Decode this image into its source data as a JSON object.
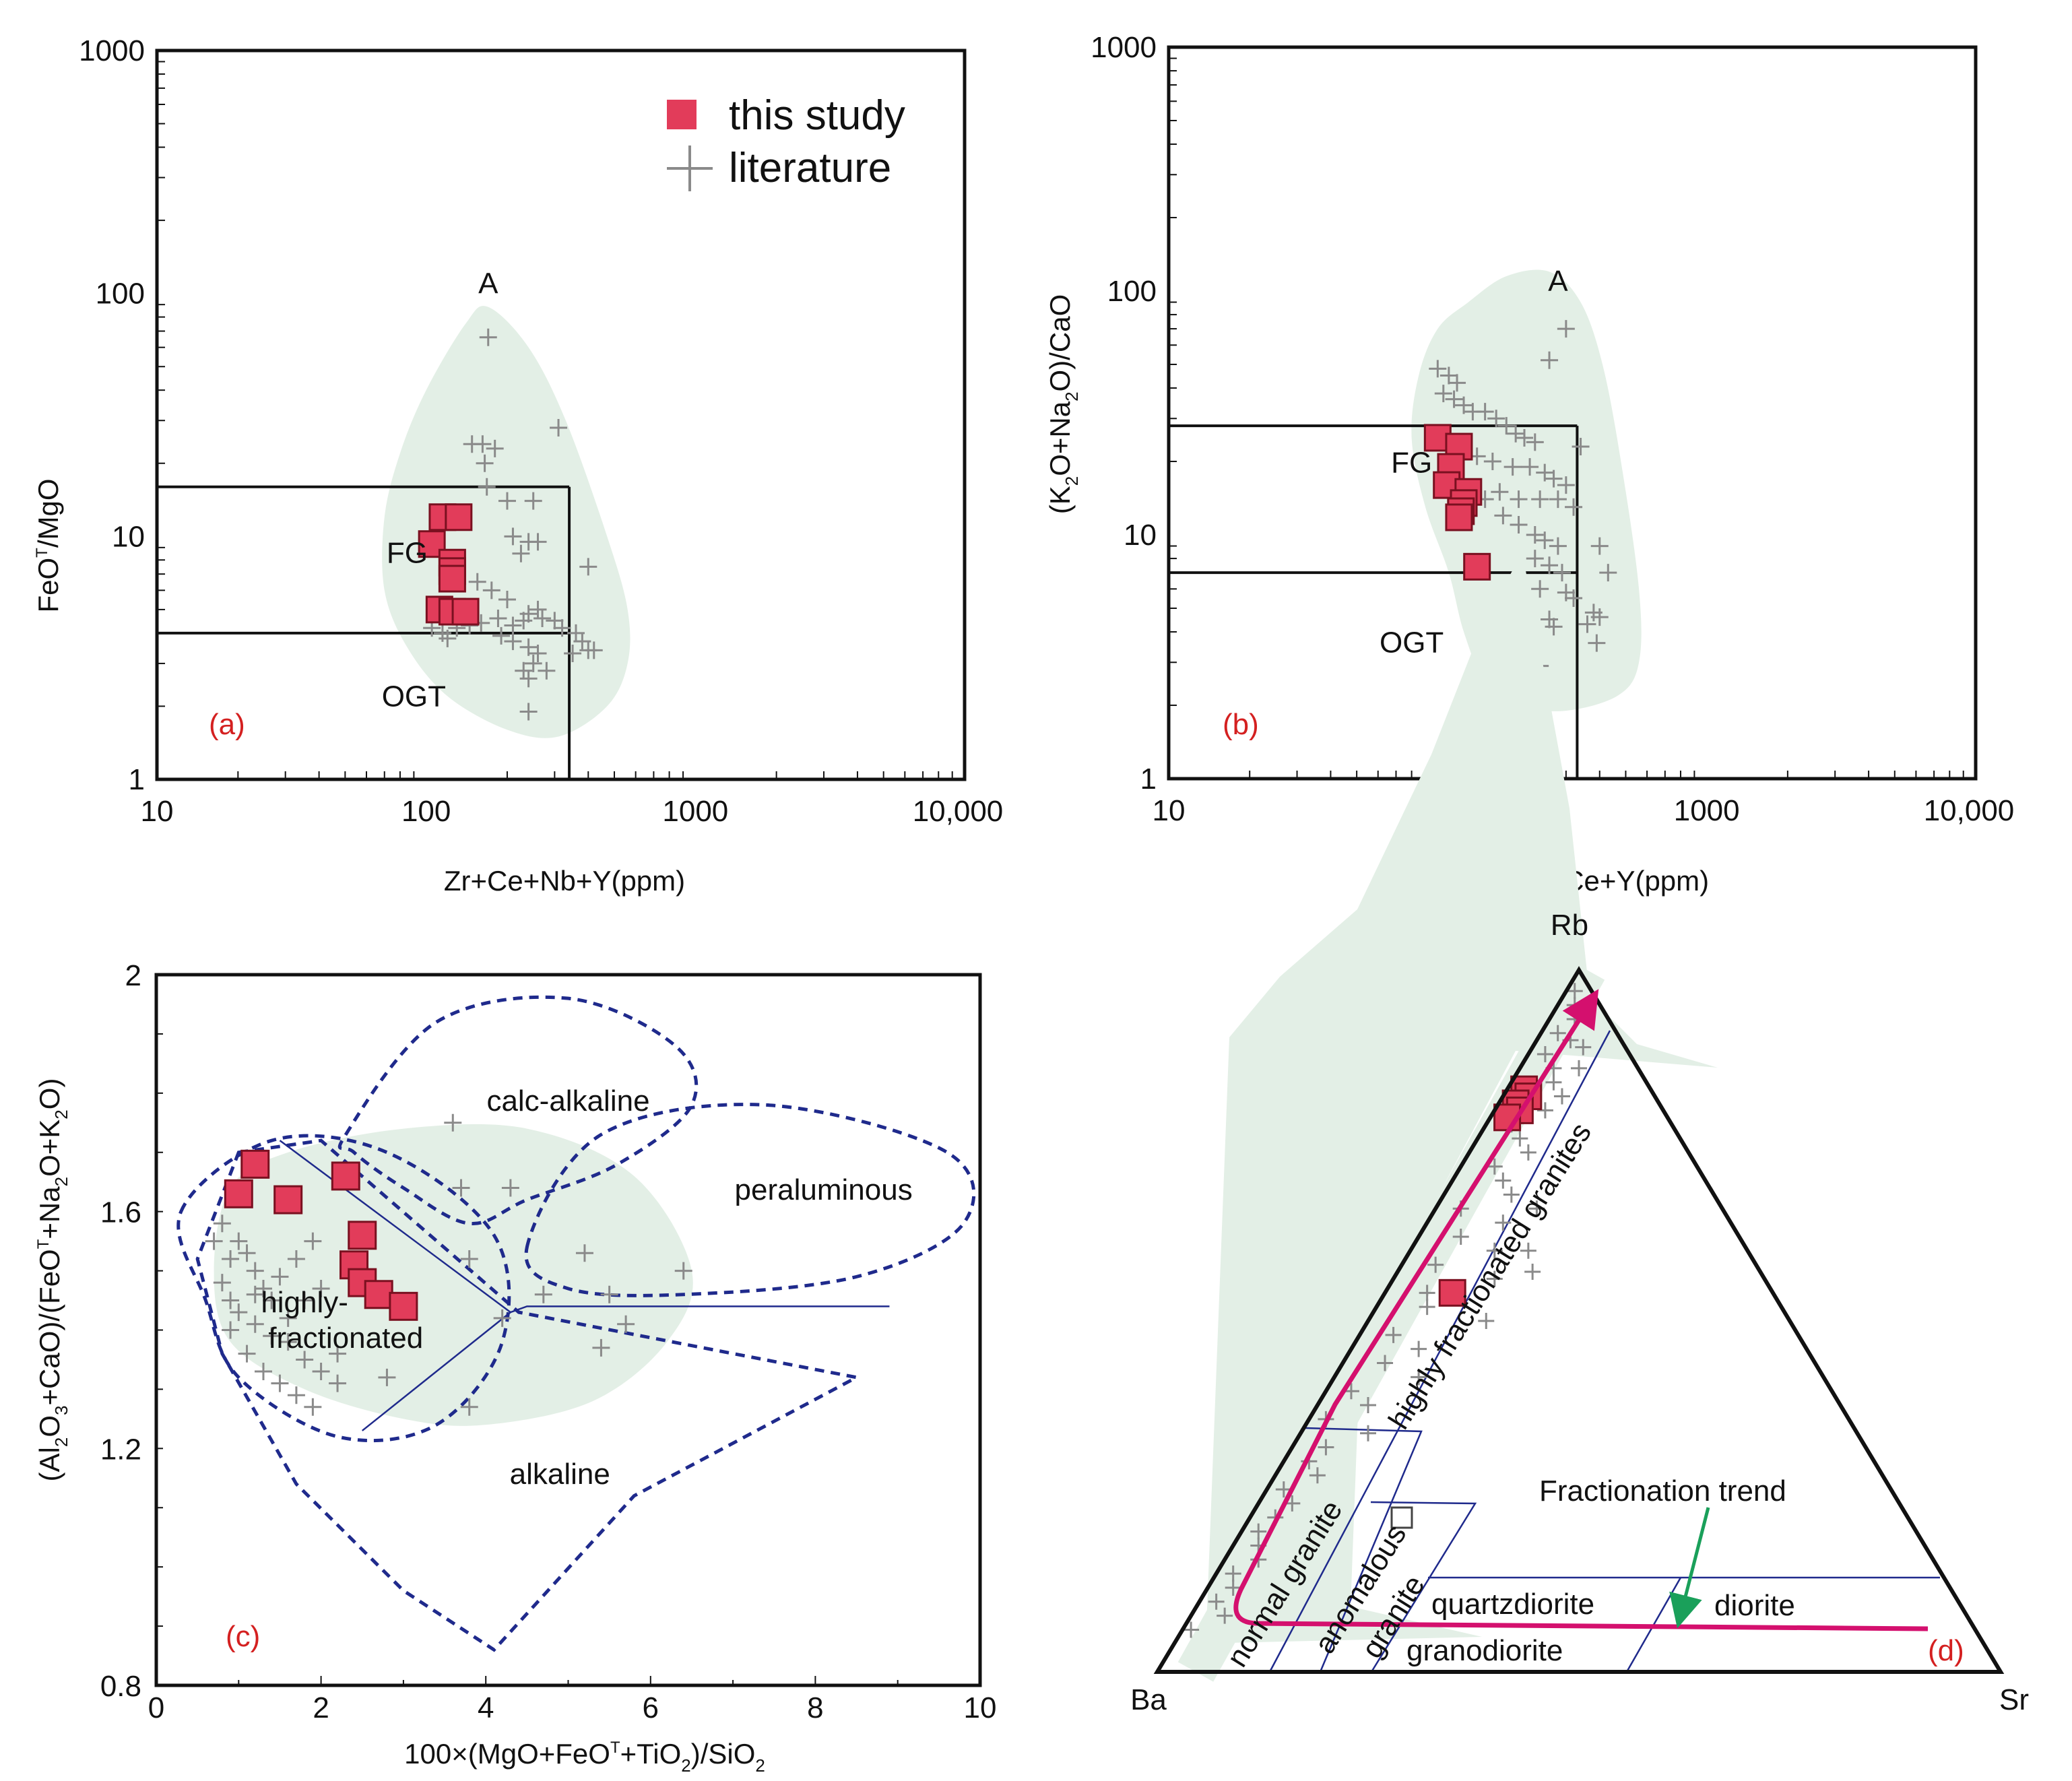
{
  "colors": {
    "this_study": "#e23c5a",
    "this_study_edge": "#7a1020",
    "literature": "#8a8a8a",
    "field": "#e3efe6",
    "blue": "#1f2a8c",
    "magenta": "#d4106e",
    "green_arrow": "#1aa05a",
    "panel_label": "#d42020"
  },
  "legend": {
    "this_study": "this study",
    "literature": "literature"
  },
  "chart_data": [
    {
      "id": "a",
      "type": "scatter",
      "panel_label": "(a)",
      "xscale": "log",
      "yscale": "log",
      "xlim": [
        10,
        10000
      ],
      "ylim": [
        1,
        1000
      ],
      "xlabel": "Zr+Ce+Nb+Y(ppm)",
      "ylabel": "FeOT/MgO",
      "xticks": [
        {
          "v": 10,
          "t": "10"
        },
        {
          "v": 100,
          "t": "100"
        },
        {
          "v": 1000,
          "t": "1000"
        },
        {
          "v": 10000,
          "t": "10,000"
        }
      ],
      "yticks": [
        {
          "v": 1,
          "t": "1"
        },
        {
          "v": 10,
          "t": "10"
        },
        {
          "v": 100,
          "t": "100"
        },
        {
          "v": 1000,
          "t": "1000"
        }
      ],
      "regions": [
        {
          "label": "A",
          "x": 170,
          "y": 100
        },
        {
          "label": "FG",
          "x": 85,
          "y": 7.8
        },
        {
          "label": "OGT",
          "x": 90,
          "y": 2.0
        }
      ],
      "boundaries": [
        {
          "x": [
            10,
            340
          ],
          "y": [
            16,
            16
          ]
        },
        {
          "x": [
            10,
            340
          ],
          "y": [
            4,
            4
          ]
        },
        {
          "x": [
            340,
            340
          ],
          "y": [
            16,
            1
          ]
        }
      ],
      "field": [
        [
          100,
          40
        ],
        [
          140,
          75
        ],
        [
          170,
          88
        ],
        [
          240,
          60
        ],
        [
          330,
          30
        ],
        [
          470,
          10
        ],
        [
          560,
          5
        ],
        [
          560,
          3
        ],
        [
          470,
          2
        ],
        [
          310,
          1.5
        ],
        [
          200,
          1.6
        ],
        [
          120,
          2.2
        ],
        [
          85,
          3.5
        ],
        [
          70,
          6
        ],
        [
          70,
          12
        ],
        [
          80,
          22
        ]
      ],
      "this_study": [
        [
          105,
          9.3
        ],
        [
          115,
          12
        ],
        [
          132,
          12
        ],
        [
          125,
          7.8
        ],
        [
          125,
          7.2
        ],
        [
          125,
          6.7
        ],
        [
          112,
          5
        ],
        [
          125,
          4.9
        ],
        [
          140,
          4.9
        ]
      ],
      "literature": [
        [
          170,
          66
        ],
        [
          148,
          24
        ],
        [
          162,
          24
        ],
        [
          180,
          23
        ],
        [
          165,
          20
        ],
        [
          310,
          28
        ],
        [
          168,
          16
        ],
        [
          200,
          14
        ],
        [
          250,
          14
        ],
        [
          210,
          10
        ],
        [
          240,
          9.5
        ],
        [
          260,
          9.5
        ],
        [
          225,
          8.5
        ],
        [
          400,
          7.5
        ],
        [
          155,
          6.5
        ],
        [
          175,
          6
        ],
        [
          200,
          5.5
        ],
        [
          105,
          4.2
        ],
        [
          115,
          4
        ],
        [
          130,
          4.2
        ],
        [
          145,
          4.3
        ],
        [
          160,
          4.4
        ],
        [
          185,
          4.6
        ],
        [
          210,
          4.3
        ],
        [
          230,
          4.5
        ],
        [
          240,
          4.8
        ],
        [
          260,
          5
        ],
        [
          270,
          4.6
        ],
        [
          300,
          4.5
        ],
        [
          320,
          4.2
        ],
        [
          360,
          4
        ],
        [
          380,
          3.7
        ],
        [
          420,
          3.4
        ],
        [
          190,
          3.9
        ],
        [
          210,
          3.7
        ],
        [
          240,
          3.5
        ],
        [
          260,
          3.3
        ],
        [
          250,
          3
        ],
        [
          230,
          2.8
        ],
        [
          240,
          2.6
        ],
        [
          280,
          2.8
        ],
        [
          350,
          3.3
        ],
        [
          400,
          3.4
        ],
        [
          240,
          1.9
        ],
        [
          120,
          3.8
        ]
      ]
    },
    {
      "id": "b",
      "type": "scatter",
      "panel_label": "(b)",
      "xscale": "log",
      "yscale": "log",
      "xlim": [
        10,
        10000
      ],
      "ylim": [
        1,
        1000
      ],
      "xlabel": "Zr+Nb+Ce+Y(ppm)",
      "ylabel": "(K2O+Na2O)/CaO",
      "xticks": [
        {
          "v": 10,
          "t": "10"
        },
        {
          "v": 100,
          "t": "100"
        },
        {
          "v": 1000,
          "t": "1000"
        },
        {
          "v": 10000,
          "t": "10,000"
        }
      ],
      "yticks": [
        {
          "v": 1,
          "t": "1"
        },
        {
          "v": 10,
          "t": "10"
        },
        {
          "v": 100,
          "t": "100"
        },
        {
          "v": 1000,
          "t": "1000"
        }
      ],
      "regions": [
        {
          "label": "A",
          "x": 280,
          "y": 100
        },
        {
          "label": "FG",
          "x": 80,
          "y": 18
        },
        {
          "label": "OGT",
          "x": 80,
          "y": 3.3
        }
      ],
      "boundaries": [
        {
          "x": [
            10,
            330
          ],
          "y": [
            28,
            28
          ]
        },
        {
          "x": [
            10,
            330
          ],
          "y": [
            7,
            7
          ]
        },
        {
          "x": [
            330,
            330
          ],
          "y": [
            28,
            1
          ]
        }
      ],
      "field": [
        [
          130,
          90
        ],
        [
          180,
          115
        ],
        [
          260,
          120
        ],
        [
          340,
          90
        ],
        [
          410,
          50
        ],
        [
          480,
          20
        ],
        [
          560,
          6
        ],
        [
          560,
          3
        ],
        [
          470,
          2.2
        ],
        [
          300,
          1.9
        ],
        [
          200,
          2
        ],
        [
          150,
          2.5
        ],
        [
          125,
          4
        ],
        [
          110,
          7
        ],
        [
          90,
          13
        ],
        [
          80,
          25
        ],
        [
          85,
          45
        ],
        [
          100,
          70
        ]
      ],
      "this_study": [
        [
          100,
          25
        ],
        [
          120,
          23
        ],
        [
          112,
          19
        ],
        [
          108,
          16
        ],
        [
          130,
          15
        ],
        [
          125,
          13.5
        ],
        [
          122,
          12.5
        ],
        [
          120,
          11.8
        ],
        [
          140,
          7.4
        ]
      ],
      "literature": [
        [
          300,
          70
        ],
        [
          100,
          48
        ],
        [
          110,
          45
        ],
        [
          118,
          42
        ],
        [
          260,
          52
        ],
        [
          105,
          38
        ],
        [
          115,
          36
        ],
        [
          125,
          34
        ],
        [
          135,
          32
        ],
        [
          150,
          32
        ],
        [
          165,
          30
        ],
        [
          180,
          28
        ],
        [
          195,
          26
        ],
        [
          210,
          25
        ],
        [
          230,
          24
        ],
        [
          340,
          23
        ],
        [
          120,
          22
        ],
        [
          140,
          21
        ],
        [
          160,
          20
        ],
        [
          190,
          19
        ],
        [
          220,
          19
        ],
        [
          250,
          18
        ],
        [
          270,
          17
        ],
        [
          300,
          16
        ],
        [
          135,
          15
        ],
        [
          150,
          14
        ],
        [
          170,
          15
        ],
        [
          200,
          14
        ],
        [
          240,
          14
        ],
        [
          280,
          14
        ],
        [
          320,
          13
        ],
        [
          175,
          12
        ],
        [
          200,
          11
        ],
        [
          230,
          10
        ],
        [
          250,
          9.5
        ],
        [
          280,
          9
        ],
        [
          400,
          9
        ],
        [
          230,
          8
        ],
        [
          260,
          7.5
        ],
        [
          290,
          7
        ],
        [
          430,
          7
        ],
        [
          240,
          6
        ],
        [
          300,
          5.8
        ],
        [
          320,
          5.5
        ],
        [
          260,
          4.5
        ],
        [
          380,
          4.8
        ],
        [
          400,
          4.6
        ],
        [
          270,
          4.2
        ],
        [
          360,
          4.3
        ],
        [
          390,
          3.6
        ],
        [
          240,
          2.9
        ]
      ]
    },
    {
      "id": "c",
      "type": "scatter",
      "panel_label": "(c)",
      "xscale": "linear",
      "yscale": "linear",
      "xlim": [
        0,
        10
      ],
      "ylim": [
        0.8,
        2
      ],
      "xlabel": "100×(MgO+FeOT+TiO2)/SiO2",
      "ylabel": "(Al2O3+CaO)/(FeOT+Na2O+K2O)",
      "xticks": [
        {
          "v": 0,
          "t": "0"
        },
        {
          "v": 2,
          "t": "2"
        },
        {
          "v": 4,
          "t": "4"
        },
        {
          "v": 6,
          "t": "6"
        },
        {
          "v": 8,
          "t": "8"
        },
        {
          "v": 10,
          "t": "10"
        }
      ],
      "yticks": [
        {
          "v": 0.8,
          "t": "0.8"
        },
        {
          "v": 1.2,
          "t": "1.2"
        },
        {
          "v": 1.6,
          "t": "1.6"
        },
        {
          "v": 2,
          "t": "2"
        }
      ],
      "regions": [
        {
          "label": "calc-alkaline",
          "x": 5.0,
          "y": 1.77
        },
        {
          "label": "peraluminous",
          "x": 8.1,
          "y": 1.62
        },
        {
          "label": "highly-",
          "x": 1.8,
          "y": 1.43
        },
        {
          "label": "fractionated",
          "x": 2.3,
          "y": 1.37
        },
        {
          "label": "alkaline",
          "x": 4.9,
          "y": 1.14
        }
      ],
      "this_study": [
        [
          1.2,
          1.68
        ],
        [
          1.0,
          1.63
        ],
        [
          1.6,
          1.62
        ],
        [
          2.3,
          1.66
        ],
        [
          2.5,
          1.56
        ],
        [
          2.4,
          1.51
        ],
        [
          2.5,
          1.48
        ],
        [
          2.7,
          1.46
        ],
        [
          3.0,
          1.44
        ]
      ],
      "literature": [
        [
          3.6,
          1.75
        ],
        [
          4.3,
          1.64
        ],
        [
          3.7,
          1.64
        ],
        [
          6.4,
          1.5
        ],
        [
          5.2,
          1.53
        ],
        [
          3.8,
          1.52
        ],
        [
          4.7,
          1.46
        ],
        [
          5.5,
          1.46
        ],
        [
          5.7,
          1.41
        ],
        [
          5.4,
          1.37
        ],
        [
          3.8,
          1.27
        ],
        [
          4.2,
          1.42
        ],
        [
          0.7,
          1.55
        ],
        [
          0.8,
          1.58
        ],
        [
          0.9,
          1.52
        ],
        [
          1.0,
          1.55
        ],
        [
          1.1,
          1.53
        ],
        [
          1.2,
          1.5
        ],
        [
          1.3,
          1.47
        ],
        [
          1.4,
          1.45
        ],
        [
          0.8,
          1.48
        ],
        [
          0.9,
          1.45
        ],
        [
          1.0,
          1.43
        ],
        [
          1.2,
          1.41
        ],
        [
          1.4,
          1.39
        ],
        [
          1.6,
          1.42
        ],
        [
          1.8,
          1.45
        ],
        [
          2.0,
          1.47
        ],
        [
          1.7,
          1.52
        ],
        [
          1.9,
          1.55
        ],
        [
          1.6,
          1.38
        ],
        [
          1.8,
          1.35
        ],
        [
          2.0,
          1.33
        ],
        [
          2.2,
          1.36
        ],
        [
          1.1,
          1.36
        ],
        [
          1.3,
          1.33
        ],
        [
          1.5,
          1.31
        ],
        [
          1.7,
          1.29
        ],
        [
          1.9,
          1.27
        ],
        [
          2.2,
          1.31
        ],
        [
          2.8,
          1.32
        ],
        [
          1.2,
          1.46
        ],
        [
          1.5,
          1.49
        ],
        [
          0.9,
          1.4
        ]
      ]
    },
    {
      "id": "d",
      "type": "ternary",
      "panel_label": "(d)",
      "vertices": {
        "top": "Rb",
        "left": "Ba",
        "right": "Sr"
      },
      "regions": [
        {
          "label": "highly fractionated granites"
        },
        {
          "label": "normal granite"
        },
        {
          "label": "anomalous granite"
        },
        {
          "label": "quartzdiorite"
        },
        {
          "label": "granodiorite"
        },
        {
          "label": "diorite"
        }
      ],
      "annotation": "Fractionation trend",
      "this_study_rb_pct": [
        83,
        82,
        81,
        80,
        79,
        54
      ],
      "this_study_sr_pct": [
        2,
        3,
        2,
        3,
        2,
        8
      ]
    }
  ]
}
